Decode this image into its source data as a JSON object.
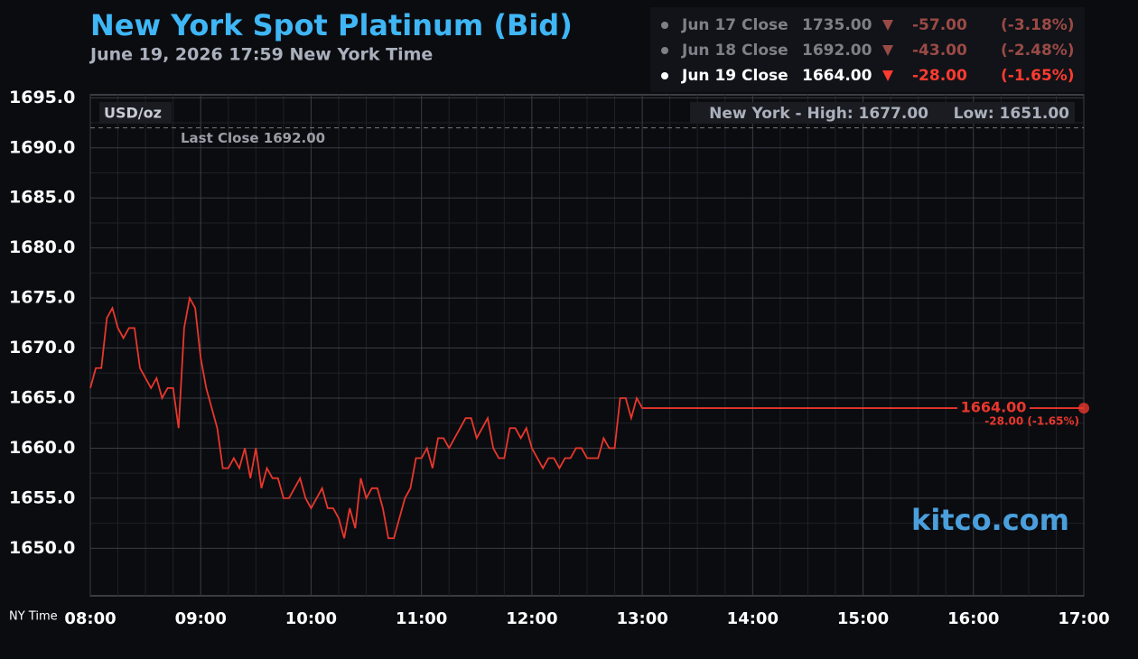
{
  "chart_data": {
    "type": "line",
    "title": "New York Spot Platinum (Bid)",
    "subtitle": "June 19, 2026 17:59 New York Time",
    "unit_label": "USD/oz",
    "high_label": "New York - High: 1677.00",
    "low_label": "Low: 1651.00",
    "last_close": {
      "value": 1692,
      "label": "Last Close 1692.00"
    },
    "last_price_label": "1664.00",
    "last_change_label": "-28.00 (-1.65%)",
    "watermark": "kitco.com",
    "x_axis_label": "NY Time",
    "xlim": [
      "08:00",
      "17:00"
    ],
    "xticks": [
      "08:00",
      "09:00",
      "10:00",
      "11:00",
      "12:00",
      "13:00",
      "14:00",
      "15:00",
      "16:00",
      "17:00"
    ],
    "ylim": [
      1645.25,
      1695.3
    ],
    "yticks": [
      {
        "value": 1650,
        "label": "1650.0"
      },
      {
        "value": 1655,
        "label": "1655.0"
      },
      {
        "value": 1660,
        "label": "1660.0"
      },
      {
        "value": 1665,
        "label": "1665.0"
      },
      {
        "value": 1670,
        "label": "1670.0"
      },
      {
        "value": 1675,
        "label": "1675.0"
      },
      {
        "value": 1680,
        "label": "1680.0"
      },
      {
        "value": 1685,
        "label": "1685.0"
      },
      {
        "value": 1690,
        "label": "1690.0"
      },
      {
        "value": 1695,
        "label": "1695.0"
      }
    ],
    "grid": true,
    "series": [
      {
        "color": "#e8372c",
        "x": [
          "08:00",
          "08:03",
          "08:06",
          "08:09",
          "08:12",
          "08:15",
          "08:18",
          "08:21",
          "08:24",
          "08:27",
          "08:30",
          "08:33",
          "08:36",
          "08:39",
          "08:42",
          "08:45",
          "08:48",
          "08:51",
          "08:54",
          "08:57",
          "09:00",
          "09:03",
          "09:06",
          "09:09",
          "09:12",
          "09:15",
          "09:18",
          "09:21",
          "09:24",
          "09:27",
          "09:30",
          "09:33",
          "09:36",
          "09:39",
          "09:42",
          "09:45",
          "09:48",
          "09:51",
          "09:54",
          "09:57",
          "10:00",
          "10:03",
          "10:06",
          "10:09",
          "10:12",
          "10:15",
          "10:18",
          "10:21",
          "10:24",
          "10:27",
          "10:30",
          "10:33",
          "10:36",
          "10:39",
          "10:42",
          "10:45",
          "10:48",
          "10:51",
          "10:54",
          "10:57",
          "11:00",
          "11:03",
          "11:06",
          "11:09",
          "11:12",
          "11:15",
          "11:18",
          "11:21",
          "11:24",
          "11:27",
          "11:30",
          "11:33",
          "11:36",
          "11:39",
          "11:42",
          "11:45",
          "11:48",
          "11:51",
          "11:54",
          "11:57",
          "12:00",
          "12:03",
          "12:06",
          "12:09",
          "12:12",
          "12:15",
          "12:18",
          "12:21",
          "12:24",
          "12:27",
          "12:30",
          "12:33",
          "12:36",
          "12:39",
          "12:42",
          "12:45",
          "12:48",
          "12:51",
          "12:54",
          "12:57",
          "13:00",
          "17:00"
        ],
        "values": [
          1666,
          1668,
          1668,
          1673,
          1674,
          1672,
          1671,
          1672,
          1672,
          1668,
          1667,
          1666,
          1667,
          1665,
          1666,
          1666,
          1662,
          1672,
          1675,
          1674,
          1669,
          1666,
          1664,
          1662,
          1658,
          1658,
          1659,
          1658,
          1660,
          1657,
          1660,
          1656,
          1658,
          1657,
          1657,
          1655,
          1655,
          1656,
          1657,
          1655,
          1654,
          1655,
          1656,
          1654,
          1654,
          1653,
          1651,
          1654,
          1652,
          1657,
          1655,
          1656,
          1656,
          1654,
          1651,
          1651,
          1653,
          1655,
          1656,
          1659,
          1659,
          1660,
          1658,
          1661,
          1661,
          1660,
          1661,
          1662,
          1663,
          1663,
          1661,
          1662,
          1663,
          1660,
          1659,
          1659,
          1662,
          1662,
          1661,
          1662,
          1660,
          1659,
          1658,
          1659,
          1659,
          1658,
          1659,
          1659,
          1660,
          1660,
          1659,
          1659,
          1659,
          1661,
          1660,
          1660,
          1665,
          1665,
          1663,
          1665,
          1664,
          1664
        ]
      }
    ]
  },
  "quotes": {
    "rows": [
      {
        "label": "Jun 17 Close",
        "close": "1735.00",
        "change": "-57.00",
        "percent": "(-3.18%)"
      },
      {
        "label": "Jun 18 Close",
        "close": "1692.00",
        "change": "-43.00",
        "percent": "(-2.48%)"
      },
      {
        "label": "Jun 19 Close",
        "close": "1664.00",
        "change": "-28.00",
        "percent": "(-1.65%)"
      }
    ]
  }
}
